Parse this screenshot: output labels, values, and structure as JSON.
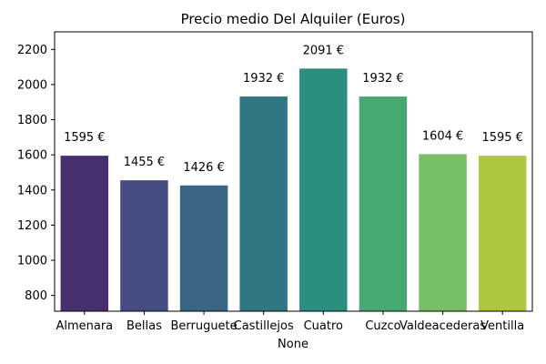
{
  "chart_data": {
    "type": "bar",
    "title": "Precio medio Del Alquiler (Euros)",
    "xlabel": "None",
    "ylabel": "",
    "categories": [
      "Almenara",
      "Bellas",
      "Berruguete",
      "Castillejos",
      "Cuatro",
      "Cuzco",
      "Valdeacederas",
      "Ventilla"
    ],
    "values": [
      1595,
      1455,
      1426,
      1932,
      2091,
      1932,
      1604,
      1595
    ],
    "data_labels": [
      "1595 €",
      "1455 €",
      "1426 €",
      "1932 €",
      "2091 €",
      "1932 €",
      "1604 €",
      "1595 €"
    ],
    "colors": [
      "#482f70",
      "#454c81",
      "#3b6584",
      "#317783",
      "#2a8f7f",
      "#48a872",
      "#76bf66",
      "#adc741"
    ],
    "ylim": [
      710,
      2300
    ],
    "yticks": [
      800,
      1000,
      1200,
      1400,
      1600,
      1800,
      2000,
      2200
    ],
    "grid": false,
    "legend": "none"
  }
}
